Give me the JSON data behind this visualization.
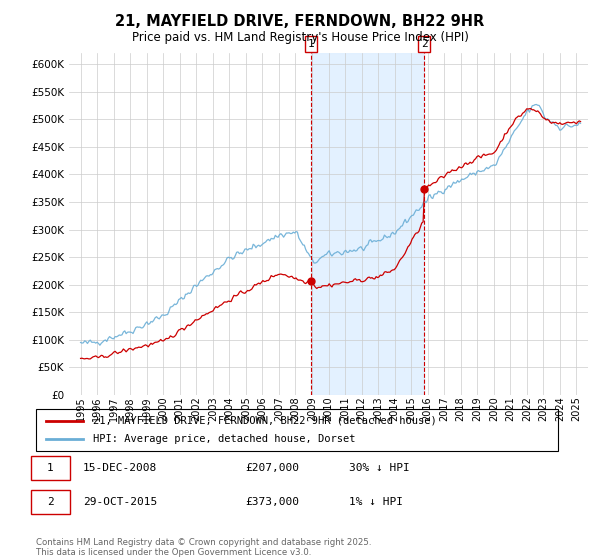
{
  "title": "21, MAYFIELD DRIVE, FERNDOWN, BH22 9HR",
  "subtitle": "Price paid vs. HM Land Registry's House Price Index (HPI)",
  "legend_line1": "21, MAYFIELD DRIVE, FERNDOWN, BH22 9HR (detached house)",
  "legend_line2": "HPI: Average price, detached house, Dorset",
  "annotation1_date": "15-DEC-2008",
  "annotation1_price": "£207,000",
  "annotation1_hpi": "30% ↓ HPI",
  "annotation2_date": "29-OCT-2015",
  "annotation2_price": "£373,000",
  "annotation2_hpi": "1% ↓ HPI",
  "copyright": "Contains HM Land Registry data © Crown copyright and database right 2025.\nThis data is licensed under the Open Government Licence v3.0.",
  "hpi_color": "#6aaed6",
  "price_color": "#cc0000",
  "shaded_region_color": "#ddeeff",
  "ylim": [
    0,
    620000
  ],
  "yticks": [
    0,
    50000,
    100000,
    150000,
    200000,
    250000,
    300000,
    350000,
    400000,
    450000,
    500000,
    550000,
    600000
  ]
}
